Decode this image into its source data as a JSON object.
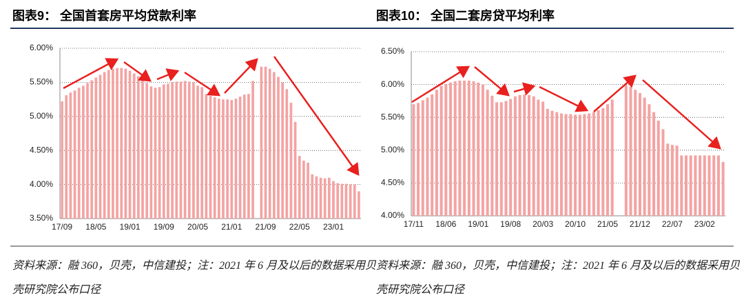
{
  "chart_data": [
    {
      "type": "bar",
      "title": "图表9： 全国首套房平均贷款利率",
      "color": "#f4a3a3",
      "source_note": "资料来源：融 360，贝壳，中信建投；注：2021 年 6 月及以后的数据采用贝壳研究院公布口径",
      "categories": [
        "17/09",
        null,
        null,
        null,
        null,
        null,
        null,
        null,
        "18/05",
        null,
        null,
        null,
        null,
        null,
        null,
        null,
        "19/01",
        null,
        null,
        null,
        null,
        null,
        null,
        null,
        "19/09",
        null,
        null,
        null,
        null,
        null,
        null,
        null,
        "20/05",
        null,
        null,
        null,
        null,
        null,
        null,
        null,
        "21/01",
        null,
        null,
        null,
        null,
        null,
        null,
        null,
        "21/09",
        null,
        null,
        null,
        null,
        null,
        null,
        null,
        "22/05",
        null,
        null,
        null,
        null,
        null,
        null,
        null,
        "23/01",
        null,
        null,
        null,
        null,
        null,
        null
      ],
      "values": [
        5.22,
        5.31,
        5.35,
        5.38,
        5.42,
        5.45,
        5.49,
        5.53,
        5.57,
        5.61,
        5.65,
        5.68,
        5.7,
        5.71,
        5.71,
        5.7,
        5.67,
        5.63,
        5.59,
        5.55,
        5.49,
        5.44,
        5.42,
        5.43,
        5.47,
        5.48,
        5.5,
        5.51,
        5.51,
        5.52,
        5.51,
        5.5,
        5.45,
        5.43,
        5.33,
        5.3,
        5.28,
        5.26,
        5.25,
        5.25,
        5.24,
        5.26,
        5.29,
        5.32,
        5.33,
        5.52,
        null,
        5.73,
        5.73,
        5.7,
        5.65,
        5.58,
        5.5,
        5.4,
        5.2,
        4.92,
        4.42,
        4.35,
        4.32,
        4.15,
        4.12,
        4.1,
        4.09,
        4.1,
        4.05,
        4.02,
        4.01,
        4.01,
        4.0,
        4.0,
        3.9
      ],
      "ylim": [
        3.5,
        6.0
      ],
      "yticks": [
        {
          "value": 3.5,
          "label": "3.50%"
        },
        {
          "value": 4.0,
          "label": "4.00%"
        },
        {
          "value": 4.5,
          "label": "4.50%"
        },
        {
          "value": 5.0,
          "label": "5.00%"
        },
        {
          "value": 5.5,
          "label": "5.50%"
        },
        {
          "value": 6.0,
          "label": "6.00%"
        }
      ],
      "grid": true
    },
    {
      "type": "bar",
      "title": "图表10： 全国二套房贷平均利率",
      "color": "#f4a3a3",
      "source_note": "资料来源：融 360，贝壳，中信建投；注：2021 年 6 月及以后的数据采用贝壳研究院公布口径",
      "categories": [
        "17/11",
        null,
        null,
        null,
        null,
        null,
        null,
        "18/06",
        null,
        null,
        null,
        null,
        null,
        null,
        "19/01",
        null,
        null,
        null,
        null,
        null,
        null,
        "19/08",
        null,
        null,
        null,
        null,
        null,
        null,
        "20/03",
        null,
        null,
        null,
        null,
        null,
        null,
        "20/10",
        null,
        null,
        null,
        null,
        null,
        null,
        "21/05",
        null,
        null,
        null,
        null,
        null,
        null,
        "21/12",
        null,
        null,
        null,
        null,
        null,
        null,
        "22/07",
        null,
        null,
        null,
        null,
        null,
        null,
        "23/02",
        null,
        null,
        null,
        null
      ],
      "values": [
        5.7,
        5.72,
        5.76,
        5.8,
        5.85,
        5.92,
        5.98,
        6.01,
        6.03,
        6.05,
        6.06,
        6.06,
        6.06,
        6.05,
        6.03,
        6.0,
        5.92,
        5.83,
        5.73,
        5.73,
        5.75,
        5.78,
        5.82,
        5.84,
        5.85,
        5.84,
        5.82,
        5.77,
        5.74,
        5.63,
        5.6,
        5.58,
        5.56,
        5.55,
        5.55,
        5.54,
        5.54,
        5.55,
        5.56,
        5.58,
        5.61,
        5.64,
        5.7,
        5.77,
        null,
        null,
        5.99,
        5.97,
        5.92,
        5.87,
        5.8,
        5.7,
        5.58,
        5.45,
        5.32,
        5.1,
        5.08,
        5.07,
        4.92,
        4.92,
        4.92,
        4.92,
        4.92,
        4.92,
        4.92,
        4.92,
        4.92,
        4.82
      ],
      "ylim": [
        4.0,
        6.5
      ],
      "yticks": [
        {
          "value": 4.0,
          "label": "4.00%"
        },
        {
          "value": 4.5,
          "label": "4.50%"
        },
        {
          "value": 5.0,
          "label": "5.00%"
        },
        {
          "value": 5.5,
          "label": "5.50%"
        },
        {
          "value": 6.0,
          "label": "6.00%"
        },
        {
          "value": 6.5,
          "label": "6.50%"
        }
      ],
      "grid": true
    }
  ]
}
